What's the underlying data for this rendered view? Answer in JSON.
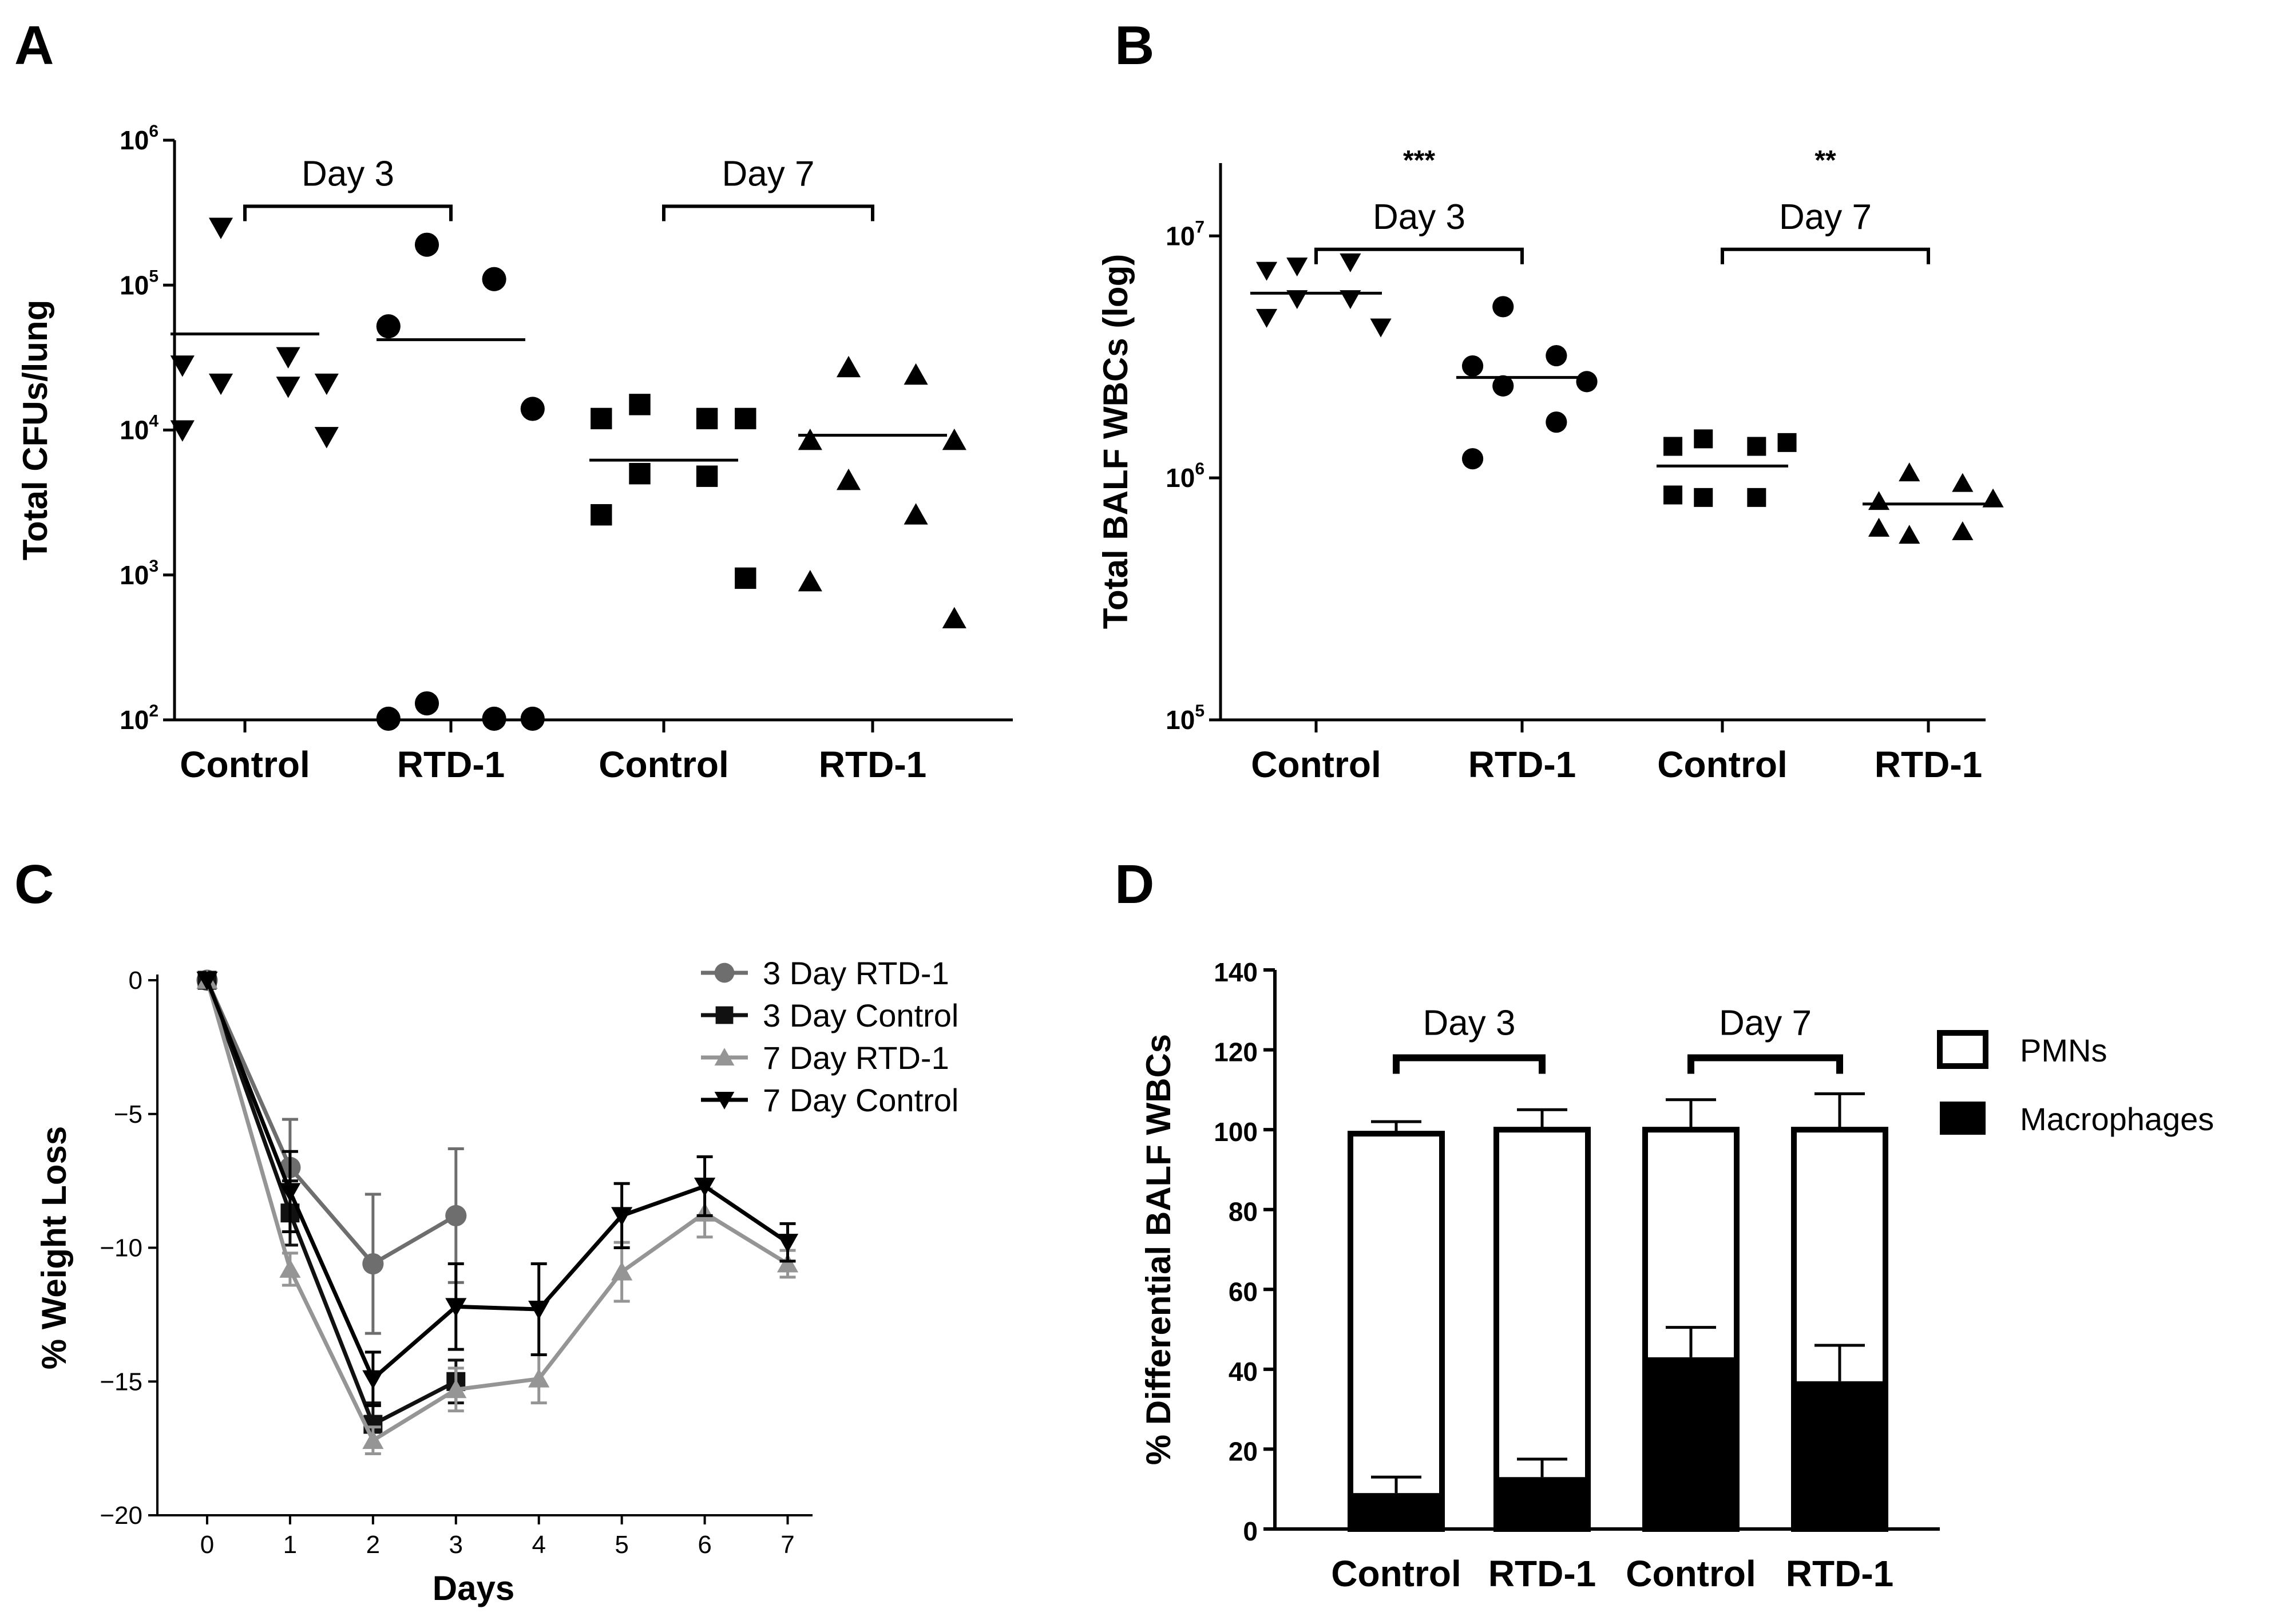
{
  "chart_data": [
    {
      "panel": "A",
      "type": "scatter",
      "ylabel": "Total CFUs/lung",
      "y_scale": "log",
      "ylim": [
        100,
        1000000
      ],
      "y_ticks": [
        {
          "base": "10",
          "exp": "2",
          "value": 100
        },
        {
          "base": "10",
          "exp": "3",
          "value": 1000
        },
        {
          "base": "10",
          "exp": "4",
          "value": 10000
        },
        {
          "base": "10",
          "exp": "5",
          "value": 100000
        },
        {
          "base": "10",
          "exp": "6",
          "value": 1000000
        }
      ],
      "categories": [
        "Control",
        "RTD-1",
        "Control",
        "RTD-1"
      ],
      "brackets": [
        {
          "label": "Day 3",
          "from": 0,
          "to": 1,
          "y": 350000,
          "sig": ""
        },
        {
          "label": "Day 7",
          "from": 2,
          "to": 3,
          "y": 350000,
          "sig": ""
        }
      ],
      "groups": [
        {
          "category": "Control",
          "day": "Day 3",
          "marker": "triangle-down",
          "mean": 46000,
          "points": [
            250000,
            32000,
            28000,
            21000,
            21000,
            20000,
            10000,
            9000
          ]
        },
        {
          "category": "RTD-1",
          "day": "Day 3",
          "marker": "circle",
          "mean": 42000,
          "points": [
            190000,
            110000,
            52000,
            14000,
            130,
            100,
            100,
            100
          ]
        },
        {
          "category": "Control",
          "day": "Day 7",
          "marker": "square",
          "mean": 6200,
          "points": [
            15000,
            12000,
            12000,
            12000,
            5000,
            4800,
            2600,
            950
          ]
        },
        {
          "category": "RTD-1",
          "day": "Day 7",
          "marker": "triangle-up",
          "mean": 9200,
          "points": [
            27000,
            24000,
            8500,
            8500,
            4500,
            2600,
            900,
            500
          ]
        }
      ]
    },
    {
      "panel": "B",
      "type": "scatter",
      "ylabel": "Total BALF WBCs (log)",
      "y_scale": "log",
      "ylim": [
        100000,
        20000000
      ],
      "y_ticks": [
        {
          "base": "10",
          "exp": "5",
          "value": 100000
        },
        {
          "base": "10",
          "exp": "6",
          "value": 1000000
        },
        {
          "base": "10",
          "exp": "7",
          "value": 10000000
        }
      ],
      "categories": [
        "Control",
        "RTD-1",
        "Control",
        "RTD-1"
      ],
      "brackets": [
        {
          "label": "Day 3",
          "from": 0,
          "to": 1,
          "y": 8800000,
          "sig": "***"
        },
        {
          "label": "Day 7",
          "from": 2,
          "to": 3,
          "y": 8800000,
          "sig": "**"
        }
      ],
      "groups": [
        {
          "category": "Control",
          "day": "Day 3",
          "marker": "triangle-down",
          "mean": 5800000,
          "points": [
            7500000,
            7800000,
            7200000,
            4200000,
            5500000,
            5500000,
            4600000
          ]
        },
        {
          "category": "RTD-1",
          "day": "Day 3",
          "marker": "circle",
          "mean": 2600000,
          "points": [
            5100000,
            3200000,
            2900000,
            2500000,
            2400000,
            1700000,
            1200000
          ]
        },
        {
          "category": "Control",
          "day": "Day 7",
          "marker": "square",
          "mean": 1120000,
          "points": [
            1450000,
            1350000,
            1350000,
            1400000,
            830000,
            830000,
            850000
          ]
        },
        {
          "category": "RTD-1",
          "day": "Day 7",
          "marker": "triangle-up",
          "mean": 780000,
          "points": [
            1050000,
            950000,
            800000,
            820000,
            580000,
            600000,
            620000
          ]
        }
      ]
    },
    {
      "panel": "C",
      "type": "line",
      "xlabel": "Days",
      "ylabel": "% Weight Loss",
      "x": [
        0,
        1,
        2,
        3,
        4,
        5,
        6,
        7
      ],
      "xlim": [
        -0.6,
        7.3
      ],
      "ylim": [
        -20,
        0
      ],
      "y_ticks": [
        0,
        -5,
        -10,
        -15,
        -20
      ],
      "y_tick_labels": [
        "0",
        "−5",
        "−10",
        "−15",
        "−20"
      ],
      "series": [
        {
          "name": "3 Day RTD-1",
          "color": "#6e6e6e",
          "marker": "circle",
          "x": [
            0,
            1,
            2,
            3
          ],
          "y": [
            0,
            -7.0,
            -10.6,
            -8.8
          ],
          "err": [
            0,
            1.8,
            2.6,
            2.5
          ]
        },
        {
          "name": "3 Day Control",
          "color": "#111111",
          "marker": "square",
          "x": [
            0,
            1,
            2,
            3
          ],
          "y": [
            0,
            -8.7,
            -16.6,
            -15.0
          ],
          "err": [
            0,
            1.2,
            0.8,
            0.8
          ]
        },
        {
          "name": "7 Day RTD-1",
          "color": "#959595",
          "marker": "triangle-up",
          "x": [
            0,
            1,
            2,
            3,
            4,
            5,
            6,
            7
          ],
          "y": [
            0,
            -10.8,
            -17.2,
            -15.3,
            -14.9,
            -10.9,
            -8.7,
            -10.6
          ],
          "err": [
            0,
            0.6,
            0.5,
            0.8,
            0.9,
            1.1,
            0.9,
            0.5
          ]
        },
        {
          "name": "7 Day Control",
          "color": "#000000",
          "marker": "triangle-down",
          "x": [
            0,
            1,
            2,
            3,
            4,
            5,
            6,
            7
          ],
          "y": [
            0,
            -7.9,
            -14.9,
            -12.2,
            -12.3,
            -8.8,
            -7.7,
            -9.8
          ],
          "err": [
            0,
            1.5,
            1.0,
            1.6,
            1.7,
            1.2,
            1.1,
            0.7
          ]
        }
      ]
    },
    {
      "panel": "D",
      "type": "bar",
      "ylabel": "% Differential BALF WBCs",
      "ylim": [
        0,
        140
      ],
      "y_ticks": [
        0,
        20,
        40,
        60,
        80,
        100,
        120,
        140
      ],
      "categories": [
        "Control",
        "RTD-1",
        "Control",
        "RTD-1"
      ],
      "brackets": [
        {
          "label": "Day 3",
          "from": 0,
          "to": 1,
          "y": 118
        },
        {
          "label": "Day 7",
          "from": 2,
          "to": 3,
          "y": 118
        }
      ],
      "series": [
        {
          "name": "PMNs",
          "color": "#ffffff",
          "values": [
            90,
            87,
            57,
            63
          ],
          "top": [
            99,
            100,
            100,
            100
          ],
          "err": [
            3,
            5,
            7.5,
            9
          ]
        },
        {
          "name": "Macrophages",
          "color": "#000000",
          "values": [
            9,
            13,
            43,
            37
          ],
          "err": [
            4,
            4.5,
            7.5,
            9
          ]
        }
      ],
      "legend_position": "right"
    }
  ]
}
